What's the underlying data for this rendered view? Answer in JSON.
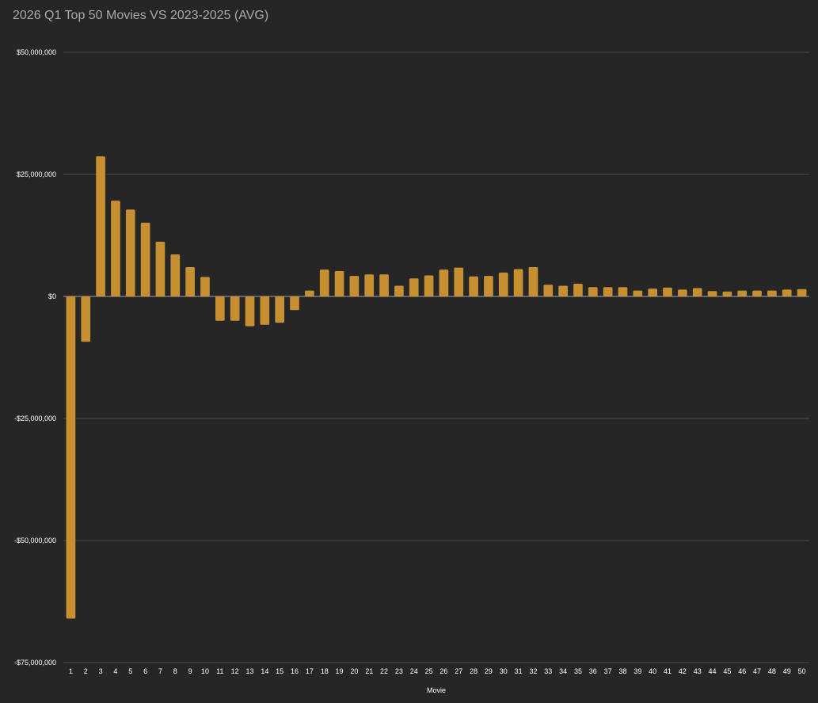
{
  "chart_data": {
    "type": "bar",
    "title": "2026 Q1 Top 50 Movies VS 2023-2025 (AVG)",
    "xlabel": "Movie",
    "ylabel": "",
    "ylim": [
      -75000000,
      50000000
    ],
    "yticks": [
      50000000,
      25000000,
      0,
      -25000000,
      -50000000,
      -75000000
    ],
    "ytick_labels": [
      "$50,000,000",
      "$25,000,000",
      "$0",
      "-$25,000,000",
      "-$50,000,000",
      "-$75,000,000"
    ],
    "grid": true,
    "legend": "none",
    "bar_color": "#c68f31",
    "categories": [
      "1",
      "2",
      "3",
      "4",
      "5",
      "6",
      "7",
      "8",
      "9",
      "10",
      "11",
      "12",
      "13",
      "14",
      "15",
      "16",
      "17",
      "18",
      "19",
      "20",
      "21",
      "22",
      "23",
      "24",
      "25",
      "26",
      "27",
      "28",
      "29",
      "30",
      "31",
      "32",
      "33",
      "34",
      "35",
      "36",
      "37",
      "38",
      "39",
      "40",
      "41",
      "42",
      "43",
      "44",
      "45",
      "46",
      "47",
      "48",
      "49",
      "50"
    ],
    "values": [
      -66000000,
      -9300000,
      28700000,
      19600000,
      17800000,
      15100000,
      11200000,
      8600000,
      6000000,
      4000000,
      -5000000,
      -5000000,
      -6100000,
      -5800000,
      -5400000,
      -2800000,
      1200000,
      5500000,
      5200000,
      4200000,
      4500000,
      4500000,
      2200000,
      3700000,
      4300000,
      5500000,
      5900000,
      4100000,
      4200000,
      4900000,
      5600000,
      6000000,
      2400000,
      2200000,
      2600000,
      1900000,
      1900000,
      1900000,
      1200000,
      1600000,
      1800000,
      1400000,
      1700000,
      1100000,
      1000000,
      1200000,
      1200000,
      1200000,
      1400000,
      1500000
    ]
  }
}
